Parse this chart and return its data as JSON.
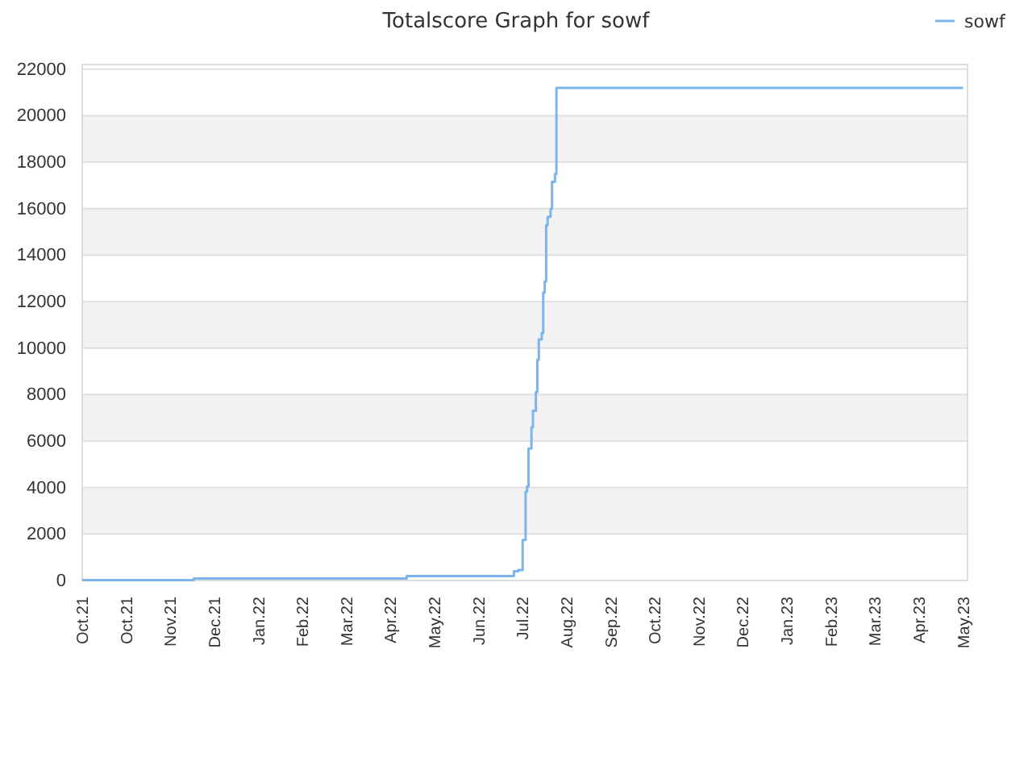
{
  "chart_data": {
    "type": "step",
    "title": "Totalscore Graph for sowf",
    "x": [
      "2021-10-01",
      "2021-12-16",
      "2022-05-10",
      "2022-07-22",
      "2022-07-25",
      "2022-07-28",
      "2022-07-30",
      "2022-07-31",
      "2022-08-01",
      "2022-08-03",
      "2022-08-04",
      "2022-08-06",
      "2022-08-07",
      "2022-08-08",
      "2022-08-10",
      "2022-08-11",
      "2022-08-12",
      "2022-08-13",
      "2022-08-14",
      "2022-08-16",
      "2022-08-17",
      "2022-08-19",
      "2022-08-20",
      "2023-05-24"
    ],
    "series": [
      {
        "name": "sowf",
        "color": "#7cb5ec",
        "values": [
          20,
          90,
          190,
          400,
          450,
          1740,
          3820,
          4050,
          5680,
          6600,
          7300,
          8110,
          9500,
          10370,
          10650,
          12390,
          12860,
          15290,
          15640,
          15990,
          17150,
          17490,
          21190,
          21190
        ]
      }
    ],
    "xlim": [
      "2021-10-01",
      "2023-05-27"
    ],
    "xticks": [
      {
        "value": "2021-10-01",
        "label": "Oct.21"
      },
      {
        "value": "2021-10-31",
        "label": "Oct.21"
      },
      {
        "value": "2021-11-30",
        "label": "Nov.21"
      },
      {
        "value": "2021-12-30",
        "label": "Dec.21"
      },
      {
        "value": "2022-01-29",
        "label": "Jan.22"
      },
      {
        "value": "2022-02-28",
        "label": "Feb.22"
      },
      {
        "value": "2022-03-30",
        "label": "Mar.22"
      },
      {
        "value": "2022-04-29",
        "label": "Apr.22"
      },
      {
        "value": "2022-05-29",
        "label": "May.22"
      },
      {
        "value": "2022-06-28",
        "label": "Jun.22"
      },
      {
        "value": "2022-07-28",
        "label": "Jul.22"
      },
      {
        "value": "2022-08-27",
        "label": "Aug.22"
      },
      {
        "value": "2022-09-26",
        "label": "Sep.22"
      },
      {
        "value": "2022-10-26",
        "label": "Oct.22"
      },
      {
        "value": "2022-11-25",
        "label": "Nov.22"
      },
      {
        "value": "2022-12-25",
        "label": "Dec.22"
      },
      {
        "value": "2023-01-24",
        "label": "Jan.23"
      },
      {
        "value": "2023-02-23",
        "label": "Feb.23"
      },
      {
        "value": "2023-03-25",
        "label": "Mar.23"
      },
      {
        "value": "2023-04-24",
        "label": "Apr.23"
      },
      {
        "value": "2023-05-24",
        "label": "May.23"
      }
    ],
    "ylim": [
      0,
      22200
    ],
    "yticks": [
      0,
      2000,
      4000,
      6000,
      8000,
      10000,
      12000,
      14000,
      16000,
      18000,
      20000,
      22000
    ],
    "grid": "y",
    "legend": "top right",
    "marker": "none",
    "line_style": "solid"
  }
}
